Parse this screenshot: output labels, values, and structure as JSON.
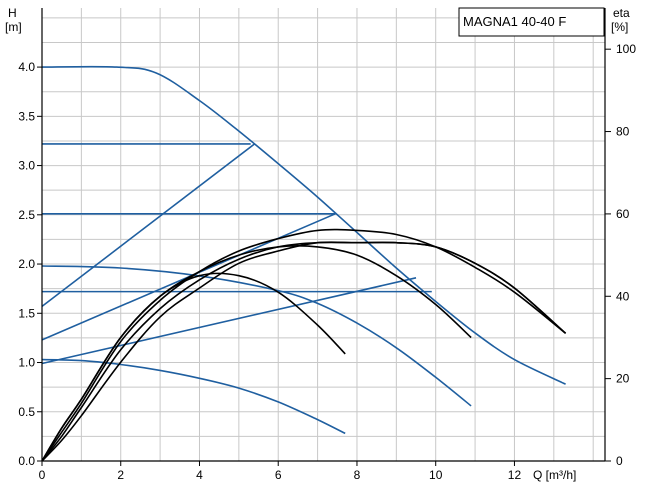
{
  "chart_data": {
    "type": "line",
    "title": "MAGNA1 40-40 F",
    "xlabel": "Q [m³/h]",
    "ylabel": {
      "name": "H",
      "unit": "[m]"
    },
    "y2label": {
      "name": "eta",
      "unit": "[%]"
    },
    "xlim": [
      0,
      14.3
    ],
    "ylim": [
      0,
      4.6
    ],
    "y2lim": [
      0,
      110
    ],
    "grid": true,
    "x_ticks": [
      0,
      2,
      4,
      6,
      8,
      10,
      12
    ],
    "y_ticks": [
      "0.0",
      "0.5",
      "1.0",
      "1.5",
      "2.0",
      "2.5",
      "3.0",
      "3.5",
      "4.0"
    ],
    "y2_ticks": [
      "0",
      "20",
      "40",
      "60",
      "80",
      "100"
    ],
    "colors": {
      "head": "#1f5fa0",
      "efficiency": "#000000",
      "grid": "#c8c8c8"
    },
    "head_curves": [
      {
        "x": [
          0,
          1.9,
          2.9,
          4.0,
          5.0,
          6.0,
          7.0,
          8.0,
          9.0,
          10.0,
          11.0,
          12.0,
          13.3
        ],
        "y": [
          4.0,
          4.0,
          3.94,
          3.66,
          3.35,
          3.02,
          2.68,
          2.32,
          1.96,
          1.62,
          1.3,
          1.03,
          0.78
        ]
      },
      {
        "x": [
          0,
          5.3
        ],
        "y": [
          3.22,
          3.22
        ]
      },
      {
        "x": [
          0,
          7.45
        ],
        "y": [
          2.51,
          2.51
        ]
      },
      {
        "x": [
          0,
          9.9
        ],
        "y": [
          1.72,
          1.72
        ]
      },
      {
        "x": [
          0,
          2.0,
          4.0,
          6.0,
          7.0,
          8.0,
          9.0,
          10.0,
          10.9
        ],
        "y": [
          1.98,
          1.96,
          1.88,
          1.73,
          1.6,
          1.4,
          1.15,
          0.85,
          0.56
        ]
      },
      {
        "x": [
          0,
          1.0,
          2.0,
          3.0,
          4.0,
          5.0,
          6.0,
          7.0,
          7.7
        ],
        "y": [
          1.03,
          1.02,
          0.98,
          0.92,
          0.84,
          0.74,
          0.6,
          0.42,
          0.28
        ]
      },
      {
        "x": [
          0,
          5.4
        ],
        "y": [
          1.57,
          3.22
        ]
      },
      {
        "x": [
          0,
          7.45
        ],
        "y": [
          1.23,
          2.51
        ]
      },
      {
        "x": [
          0,
          9.5
        ],
        "y": [
          0.99,
          1.86
        ]
      }
    ],
    "efficiency_curves": [
      {
        "x": [
          0,
          0.5,
          1.0,
          2.0,
          3.0,
          4.0,
          5.0,
          6.0,
          7.0,
          7.7
        ],
        "y": [
          0,
          8,
          15,
          30,
          40,
          45,
          45,
          41,
          33,
          26
        ]
      },
      {
        "x": [
          0,
          0.5,
          1.0,
          2.0,
          3.0,
          4.0,
          5.0,
          6.0,
          7.0,
          8.0,
          9.0,
          10.0,
          10.9
        ],
        "y": [
          0,
          8,
          15,
          30,
          40,
          46,
          50,
          52,
          52,
          50,
          45,
          38,
          30
        ]
      },
      {
        "x": [
          0,
          0.5,
          1.0,
          2.0,
          3.0,
          4.0,
          5.0,
          6.0,
          7.0,
          8.0,
          9.0,
          10.0,
          11.0,
          12.0,
          13.3
        ],
        "y": [
          0,
          7,
          14,
          29,
          39,
          46,
          51,
          54,
          56,
          56,
          55,
          52,
          47,
          41,
          31
        ]
      },
      {
        "x": [
          0,
          0.5,
          1.0,
          2.0,
          3.0,
          4.0,
          5.0,
          6.0,
          7.0,
          8.0,
          9.0,
          10.0,
          11.0,
          12.0,
          13.3
        ],
        "y": [
          0,
          6,
          13,
          27,
          37,
          44,
          49,
          52,
          53,
          53,
          53,
          52,
          48,
          42,
          31
        ]
      },
      {
        "x": [
          0,
          0.5,
          1.0,
          2.0,
          3.0,
          4.0,
          5.0,
          6.0,
          7.0,
          8.0,
          9.0,
          10.0,
          11.0,
          12.0,
          13.3
        ],
        "y": [
          0,
          5,
          11,
          24,
          35,
          42,
          48,
          51,
          53,
          53,
          53,
          52,
          48,
          42,
          31
        ]
      }
    ]
  }
}
